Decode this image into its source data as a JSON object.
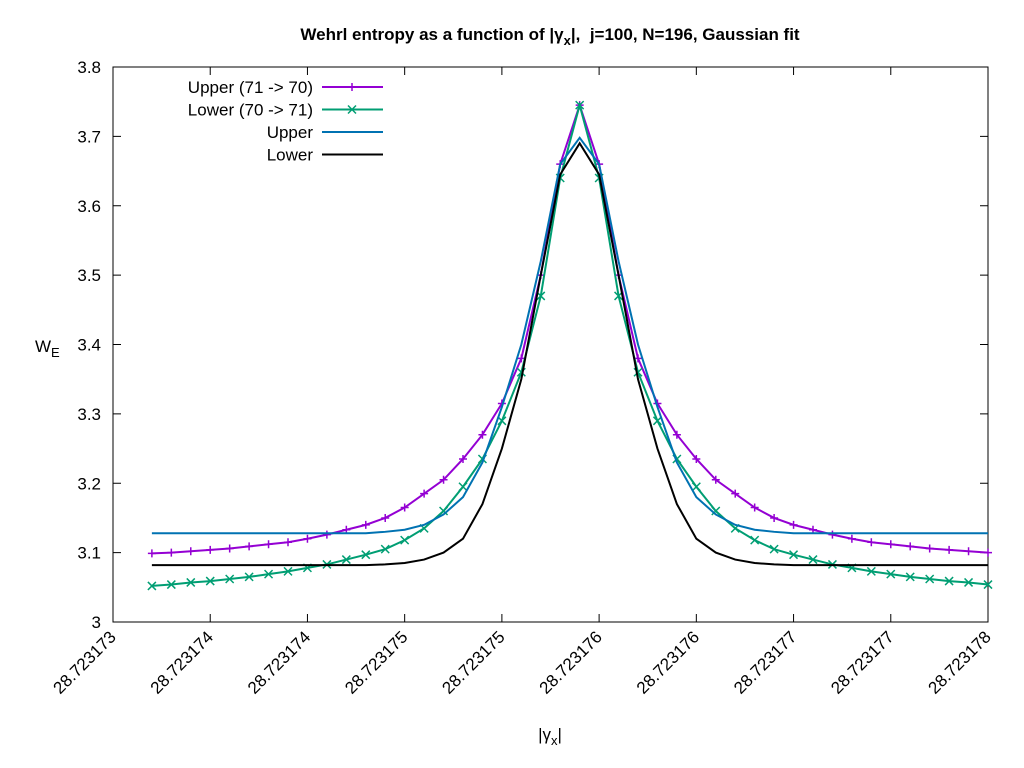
{
  "chart_data": {
    "type": "line",
    "title": [
      "Wehrl entropy as a function of |γ",
      "x",
      "|,  j=100, N=196, Gaussian fit"
    ],
    "xlabel": [
      "|γ",
      "x",
      "|"
    ],
    "ylabel": [
      "W",
      "E"
    ],
    "x": [
      28.7231732,
      28.7231733,
      28.7231734,
      28.7231735,
      28.7231736,
      28.7231737,
      28.7231738,
      28.7231739,
      28.723174,
      28.7231741,
      28.7231742,
      28.7231743,
      28.7231744,
      28.7231745,
      28.7231746,
      28.7231747,
      28.7231748,
      28.7231749,
      28.723175,
      28.7231751,
      28.7231752,
      28.7231753,
      28.7231754,
      28.7231755,
      28.7231756,
      28.7231757,
      28.7231758,
      28.7231759,
      28.723176,
      28.7231761,
      28.7231762,
      28.7231763,
      28.7231764,
      28.7231765,
      28.7231766,
      28.7231767,
      28.7231768,
      28.7231769,
      28.723177,
      28.7231771,
      28.7231772,
      28.7231773,
      28.7231774,
      28.7231775
    ],
    "series": [
      {
        "name": "Upper (71 -> 70)",
        "color": "#9400d3",
        "marker": "plus",
        "values": [
          3.099,
          3.1,
          3.102,
          3.104,
          3.106,
          3.109,
          3.112,
          3.115,
          3.12,
          3.126,
          3.133,
          3.14,
          3.15,
          3.165,
          3.185,
          3.205,
          3.235,
          3.27,
          3.315,
          3.38,
          3.5,
          3.66,
          3.745,
          3.66,
          3.5,
          3.38,
          3.315,
          3.27,
          3.235,
          3.205,
          3.185,
          3.165,
          3.15,
          3.14,
          3.133,
          3.126,
          3.12,
          3.115,
          3.112,
          3.109,
          3.106,
          3.104,
          3.102,
          3.1
        ]
      },
      {
        "name": "Lower (70 -> 71)",
        "color": "#009e73",
        "marker": "cross",
        "values": [
          3.052,
          3.054,
          3.057,
          3.059,
          3.062,
          3.065,
          3.069,
          3.073,
          3.078,
          3.083,
          3.09,
          3.097,
          3.105,
          3.118,
          3.135,
          3.16,
          3.195,
          3.235,
          3.29,
          3.36,
          3.47,
          3.64,
          3.745,
          3.64,
          3.47,
          3.36,
          3.29,
          3.235,
          3.195,
          3.16,
          3.135,
          3.118,
          3.105,
          3.097,
          3.09,
          3.083,
          3.078,
          3.073,
          3.069,
          3.065,
          3.062,
          3.059,
          3.057,
          3.054
        ]
      },
      {
        "name": "Upper",
        "color": "#0072b2",
        "values": [
          3.128,
          3.128,
          3.128,
          3.128,
          3.128,
          3.128,
          3.128,
          3.128,
          3.128,
          3.128,
          3.128,
          3.128,
          3.13,
          3.133,
          3.14,
          3.155,
          3.18,
          3.23,
          3.31,
          3.4,
          3.52,
          3.66,
          3.698,
          3.66,
          3.52,
          3.4,
          3.31,
          3.23,
          3.18,
          3.155,
          3.14,
          3.133,
          3.13,
          3.128,
          3.128,
          3.128,
          3.128,
          3.128,
          3.128,
          3.128,
          3.128,
          3.128,
          3.128,
          3.128
        ]
      },
      {
        "name": "Lower",
        "color": "#000000",
        "values": [
          3.082,
          3.082,
          3.082,
          3.082,
          3.082,
          3.082,
          3.082,
          3.082,
          3.082,
          3.082,
          3.082,
          3.082,
          3.083,
          3.085,
          3.09,
          3.1,
          3.12,
          3.17,
          3.25,
          3.35,
          3.5,
          3.645,
          3.69,
          3.645,
          3.5,
          3.35,
          3.25,
          3.17,
          3.12,
          3.1,
          3.09,
          3.085,
          3.083,
          3.082,
          3.082,
          3.082,
          3.082,
          3.082,
          3.082,
          3.082,
          3.082,
          3.082,
          3.082,
          3.082
        ]
      }
    ],
    "xlim": [
      28.723173,
      28.7231775
    ],
    "xticks": [
      28.723173,
      {
        "value": 28.7231735,
        "label": "28.723174"
      },
      28.723174,
      {
        "value": 28.7231745,
        "label": "28.723175"
      },
      28.723175,
      {
        "value": 28.7231755,
        "label": "28.723176"
      },
      28.723176,
      {
        "value": 28.7231765,
        "label": "28.723177"
      },
      28.723177,
      {
        "value": 28.7231775,
        "label": "28.723178"
      }
    ],
    "ylim": [
      3,
      3.8
    ],
    "yticks": [
      3,
      3.1,
      3.2,
      3.3,
      3.4,
      3.5,
      3.6,
      3.7,
      3.8
    ],
    "grid": false,
    "legend": "top-left"
  }
}
